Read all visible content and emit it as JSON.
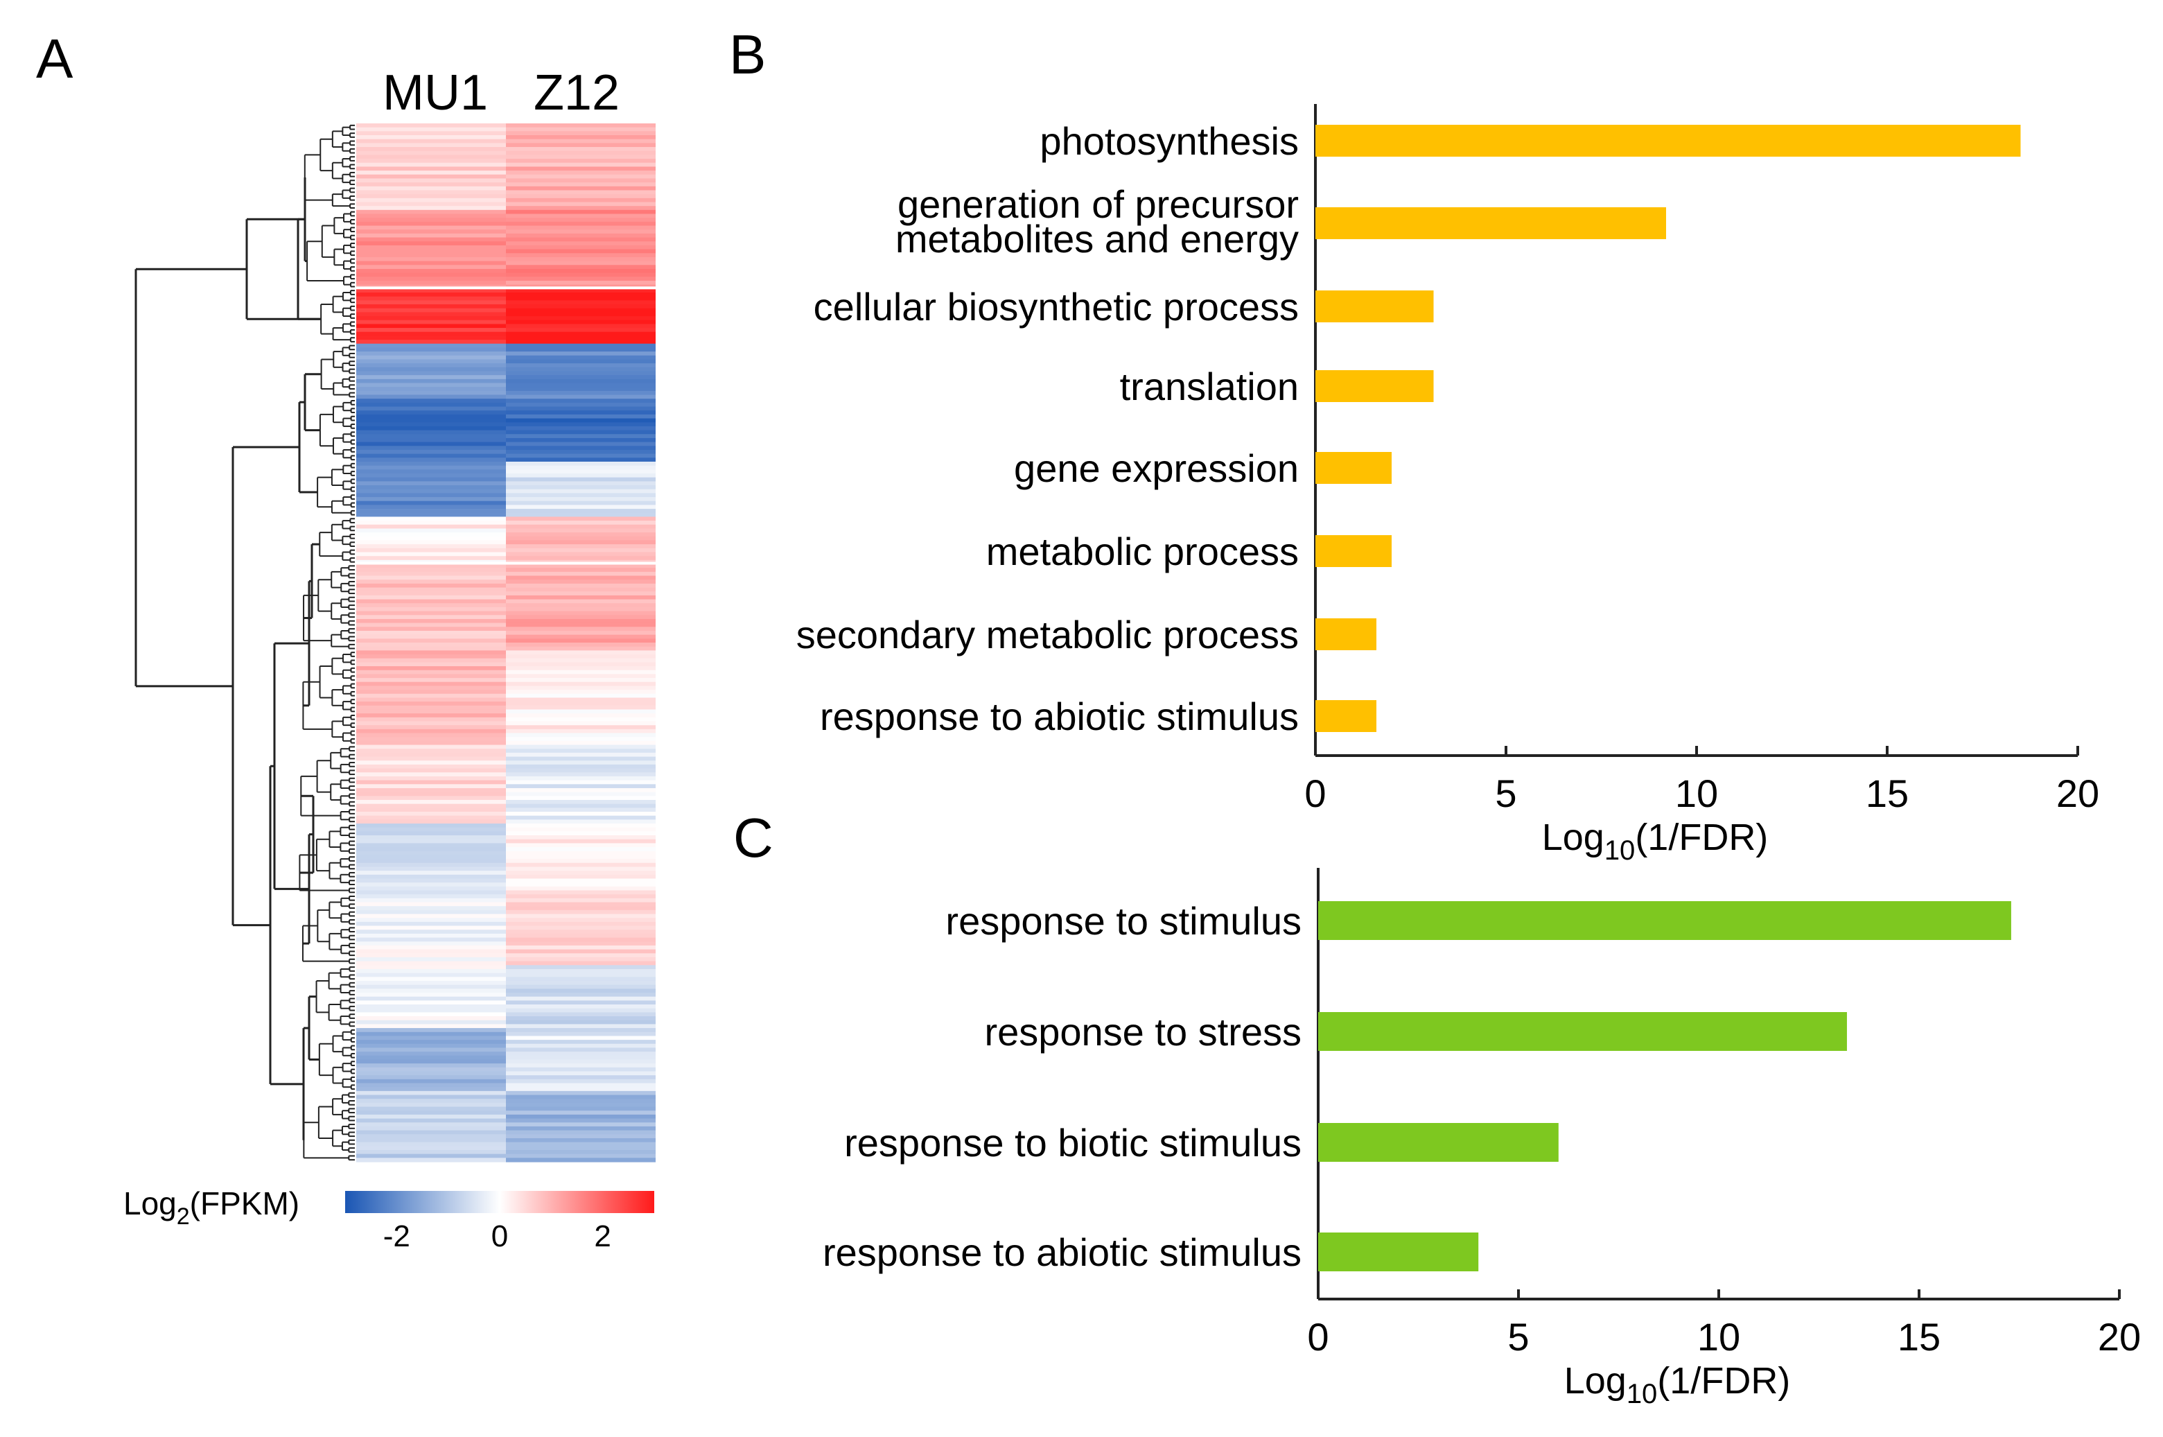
{
  "panels": {
    "A": {
      "letter": "A",
      "column_labels": [
        "MU1",
        "Z12"
      ],
      "colorbar": {
        "label_main": "Log",
        "label_sub": "2",
        "label_tail": "(FPKM)",
        "ticks": [
          -2,
          0,
          2
        ],
        "colors": [
          "#1a56b4",
          "#ffffff",
          "#ff1a1a"
        ],
        "range": [
          -3,
          3
        ]
      }
    },
    "B": {
      "letter": "B"
    },
    "C": {
      "letter": "C"
    }
  },
  "chart_data": [
    {
      "id": "heatmap",
      "type": "heatmap",
      "title": "",
      "columns": [
        "MU1",
        "Z12"
      ],
      "value_unit": "Log2(FPKM)",
      "vmin": -3,
      "vmax": 3,
      "cluster_blocks": [
        {
          "rows": 22,
          "mu1": 0.6,
          "z12": 1.0
        },
        {
          "rows": 20,
          "mu1": 1.4,
          "z12": 1.5
        },
        {
          "rows": 14,
          "mu1": 2.7,
          "z12": 2.9
        },
        {
          "rows": 14,
          "mu1": -1.6,
          "z12": -2.0
        },
        {
          "rows": 16,
          "mu1": -2.5,
          "z12": -2.6
        },
        {
          "rows": 14,
          "mu1": -2.1,
          "z12": -0.5
        },
        {
          "rows": 12,
          "mu1": 0.2,
          "z12": 0.9
        },
        {
          "rows": 22,
          "mu1": 0.8,
          "z12": 1.1
        },
        {
          "rows": 24,
          "mu1": 0.9,
          "z12": 0.2
        },
        {
          "rows": 20,
          "mu1": 0.5,
          "z12": -0.3
        },
        {
          "rows": 18,
          "mu1": -0.5,
          "z12": 0.2
        },
        {
          "rows": 18,
          "mu1": -0.1,
          "z12": 0.6
        },
        {
          "rows": 16,
          "mu1": -0.1,
          "z12": -0.6
        },
        {
          "rows": 16,
          "mu1": -1.3,
          "z12": -0.4
        },
        {
          "rows": 18,
          "mu1": -0.8,
          "z12": -1.3
        }
      ]
    },
    {
      "id": "go-upregulated",
      "type": "bar",
      "orientation": "horizontal",
      "color": "#ffc000",
      "categories": [
        "photosynthesis",
        "generation of precursor metabolites and energy",
        "cellular biosynthetic process",
        "translation",
        "gene expression",
        "metabolic process",
        "secondary metabolic process",
        "response to abiotic stimulus"
      ],
      "category_lines": [
        [
          "photosynthesis"
        ],
        [
          "generation of precursor",
          "metabolites and energy"
        ],
        [
          "cellular biosynthetic process"
        ],
        [
          "translation"
        ],
        [
          "gene expression"
        ],
        [
          "metabolic process"
        ],
        [
          "secondary metabolic process"
        ],
        [
          "response to abiotic stimulus"
        ]
      ],
      "values": [
        18.5,
        9.2,
        3.1,
        3.1,
        2.0,
        2.0,
        1.6,
        1.6
      ],
      "xlabel_main": "Log",
      "xlabel_sub": "10",
      "xlabel_tail": "(1/FDR)",
      "xlim": [
        0,
        20
      ],
      "xticks": [
        0,
        5,
        10,
        15,
        20
      ]
    },
    {
      "id": "go-downregulated",
      "type": "bar",
      "orientation": "horizontal",
      "color": "#7ec820",
      "categories": [
        "response to stimulus",
        "response to stress",
        "response to biotic stimulus",
        "response to abiotic stimulus"
      ],
      "category_lines": [
        [
          "response to stimulus"
        ],
        [
          "response to stress"
        ],
        [
          "response to biotic stimulus"
        ],
        [
          "response to abiotic stimulus"
        ]
      ],
      "values": [
        17.3,
        13.2,
        6.0,
        4.0
      ],
      "xlabel_main": "Log",
      "xlabel_sub": "10",
      "xlabel_tail": "(1/FDR)",
      "xlim": [
        0,
        20
      ],
      "xticks": [
        0,
        5,
        10,
        15,
        20
      ]
    }
  ]
}
